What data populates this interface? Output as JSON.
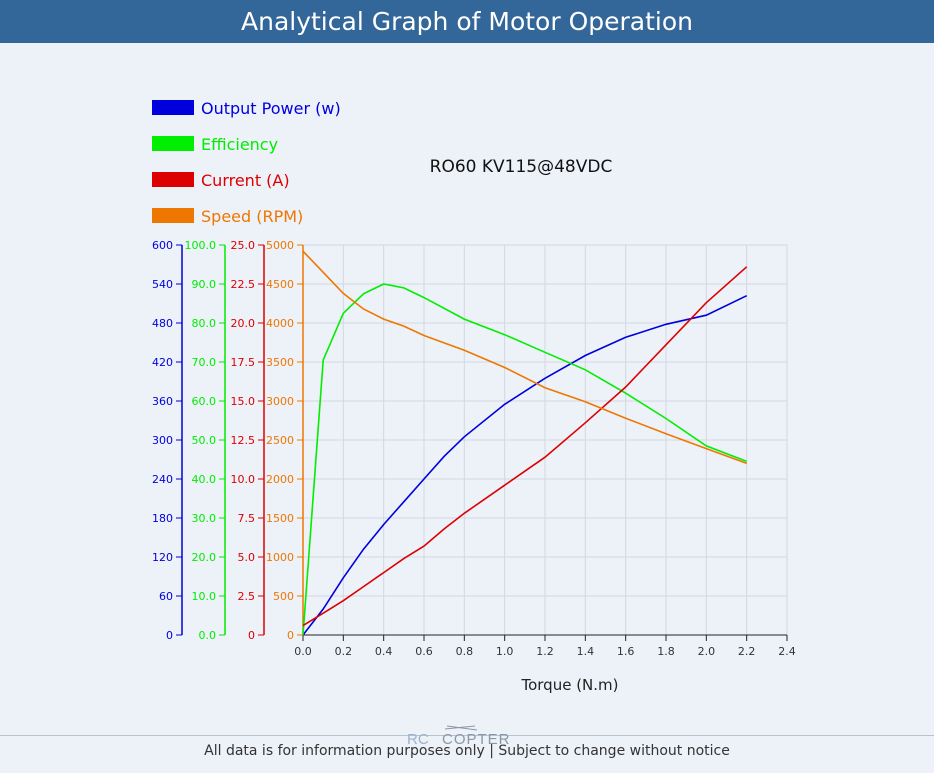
{
  "header": {
    "title": "Analytical Graph of Motor Operation"
  },
  "footer": {
    "note": "All data is for information purposes only | Subject to change without notice"
  },
  "logo": {
    "text_rc": "RC",
    "text_copter": "COPTER"
  },
  "colors": {
    "header_bg": "#336699",
    "power": "#0000dd",
    "efficiency": "#00ee00",
    "current": "#dd0000",
    "speed": "#ee7700"
  },
  "chart_data": {
    "type": "line",
    "title": "RO60 KV115@48VDC",
    "xlabel": "Torque (N.m)",
    "xlim": [
      0,
      2.4
    ],
    "x_ticks": [
      "0.0",
      "0.2",
      "0.4",
      "0.6",
      "0.8",
      "1.0",
      "1.2",
      "1.4",
      "1.6",
      "1.8",
      "2.0",
      "2.2",
      "2.4"
    ],
    "legend_position": "top-left",
    "grid": true,
    "axes": [
      {
        "id": "power",
        "range": [
          0,
          600
        ],
        "ticks": [
          "0",
          "60",
          "120",
          "180",
          "240",
          "300",
          "360",
          "420",
          "480",
          "540",
          "600"
        ]
      },
      {
        "id": "efficiency",
        "range": [
          0,
          100
        ],
        "ticks": [
          "0.0",
          "10.0",
          "20.0",
          "30.0",
          "40.0",
          "50.0",
          "60.0",
          "70.0",
          "80.0",
          "90.0",
          "100.0"
        ]
      },
      {
        "id": "current",
        "range": [
          0,
          25
        ],
        "ticks": [
          "0",
          "2.5",
          "5.0",
          "7.5",
          "10.0",
          "12.5",
          "15.0",
          "17.5",
          "20.0",
          "22.5",
          "25.0"
        ]
      },
      {
        "id": "speed",
        "range": [
          0,
          5000
        ],
        "ticks": [
          "0",
          "500",
          "1000",
          "1500",
          "2000",
          "2500",
          "3000",
          "3500",
          "4000",
          "4500",
          "5000"
        ]
      }
    ],
    "series": [
      {
        "name": "Output Power (w)",
        "axis": "power",
        "color": "#0000dd",
        "x": [
          0,
          0.1,
          0.2,
          0.3,
          0.4,
          0.5,
          0.6,
          0.7,
          0.8,
          1.0,
          1.2,
          1.4,
          1.6,
          1.8,
          2.0,
          2.2
        ],
        "y": [
          0,
          40,
          88,
          132,
          170,
          205,
          240,
          275,
          305,
          355,
          395,
          430,
          458,
          478,
          492,
          522
        ]
      },
      {
        "name": "Efficiency",
        "axis": "efficiency",
        "color": "#00ee00",
        "x": [
          0,
          0.1,
          0.2,
          0.3,
          0.4,
          0.5,
          0.6,
          0.8,
          1.0,
          1.2,
          1.4,
          1.6,
          1.8,
          2.0,
          2.2
        ],
        "y": [
          0,
          70.5,
          82.5,
          87.5,
          90,
          89,
          86.5,
          81,
          77,
          72.5,
          68,
          62,
          55.5,
          48.5,
          44.5
        ]
      },
      {
        "name": "Current (A)",
        "axis": "current",
        "color": "#dd0000",
        "x": [
          0,
          0.1,
          0.2,
          0.3,
          0.4,
          0.5,
          0.6,
          0.7,
          0.8,
          1.0,
          1.2,
          1.4,
          1.6,
          1.8,
          2.0,
          2.2
        ],
        "y": [
          0.6,
          1.4,
          2.2,
          3.1,
          4.0,
          4.9,
          5.7,
          6.8,
          7.8,
          9.6,
          11.4,
          13.6,
          15.9,
          18.6,
          21.3,
          23.6
        ]
      },
      {
        "name": "Speed (RPM)",
        "axis": "speed",
        "color": "#ee7700",
        "x": [
          0,
          0.1,
          0.2,
          0.3,
          0.4,
          0.5,
          0.6,
          0.8,
          1.0,
          1.2,
          1.4,
          1.6,
          1.8,
          2.0,
          2.2
        ],
        "y": [
          4920,
          4650,
          4380,
          4180,
          4050,
          3960,
          3840,
          3650,
          3430,
          3170,
          2990,
          2780,
          2580,
          2390,
          2200
        ]
      }
    ]
  }
}
